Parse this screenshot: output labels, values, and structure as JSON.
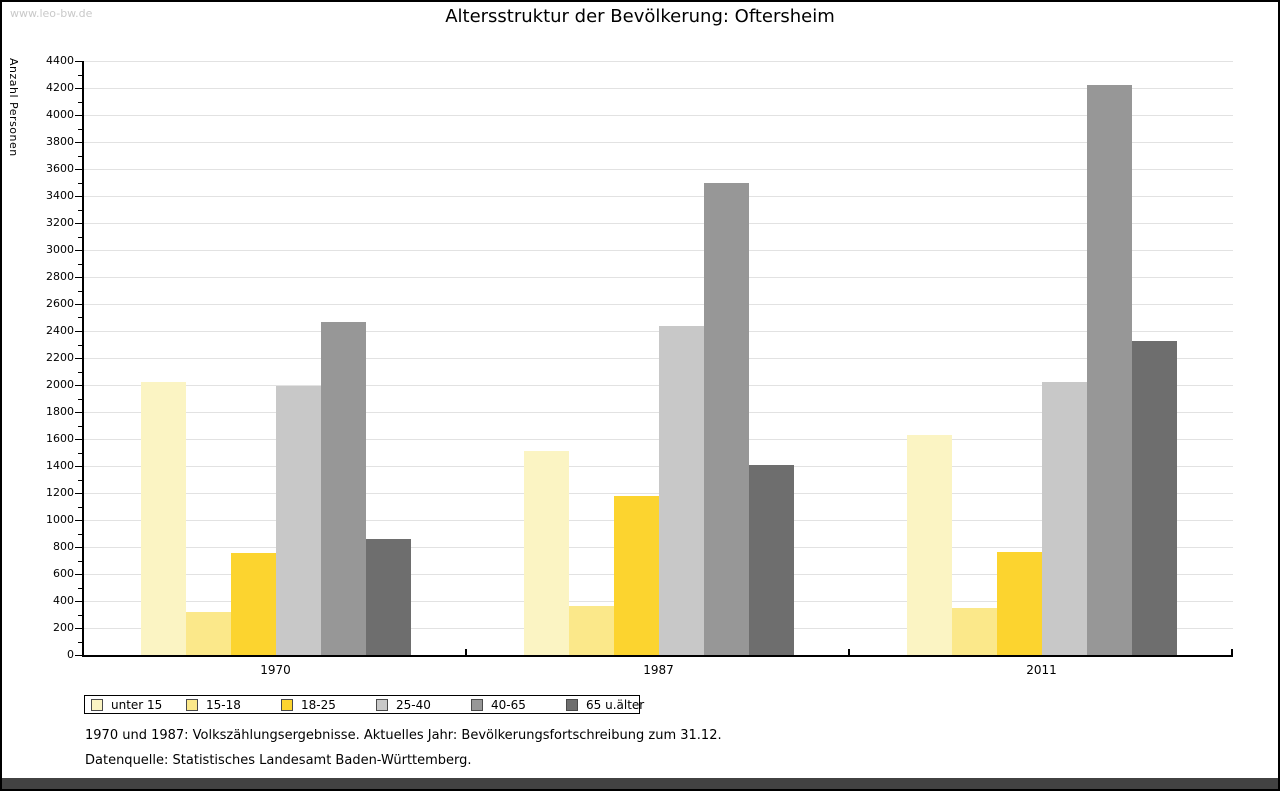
{
  "page": {
    "watermark": "www.leo-bw.de",
    "title": "Altersstruktur der Bevölkerung: Oftersheim",
    "footnotes": [
      "1970 und 1987: Volkszählungsergebnisse. Aktuelles Jahr: Bevölkerungsfortschreibung zum 31.12.",
      "Datenquelle: Statistisches Landesamt Baden-Württemberg."
    ]
  },
  "chart_data": {
    "type": "bar",
    "title": "Altersstruktur der Bevölkerung: Oftersheim",
    "xlabel": "",
    "ylabel": "Anzahl Personen",
    "categories": [
      "1970",
      "1987",
      "2011"
    ],
    "series": [
      {
        "name": "unter 15",
        "color": "#FBF4C3",
        "values": [
          2020,
          1515,
          1630
        ]
      },
      {
        "name": "15-18",
        "color": "#FBE88A",
        "values": [
          320,
          365,
          350
        ]
      },
      {
        "name": "18-25",
        "color": "#FCD42F",
        "values": [
          755,
          1180,
          760
        ]
      },
      {
        "name": "25-40",
        "color": "#C8C8C8",
        "values": [
          1995,
          2440,
          2020
        ]
      },
      {
        "name": "40-65",
        "color": "#979797",
        "values": [
          2470,
          3500,
          4220
        ]
      },
      {
        "name": "65 u.älter",
        "color": "#6E6E6E",
        "values": [
          860,
          1405,
          2325
        ]
      }
    ],
    "ylim": [
      0,
      4400
    ],
    "ytick_step": 200,
    "minor_tick_step": 100,
    "grid": true,
    "gridline_color": "#e2e2e2",
    "legend_position": "bottom"
  }
}
